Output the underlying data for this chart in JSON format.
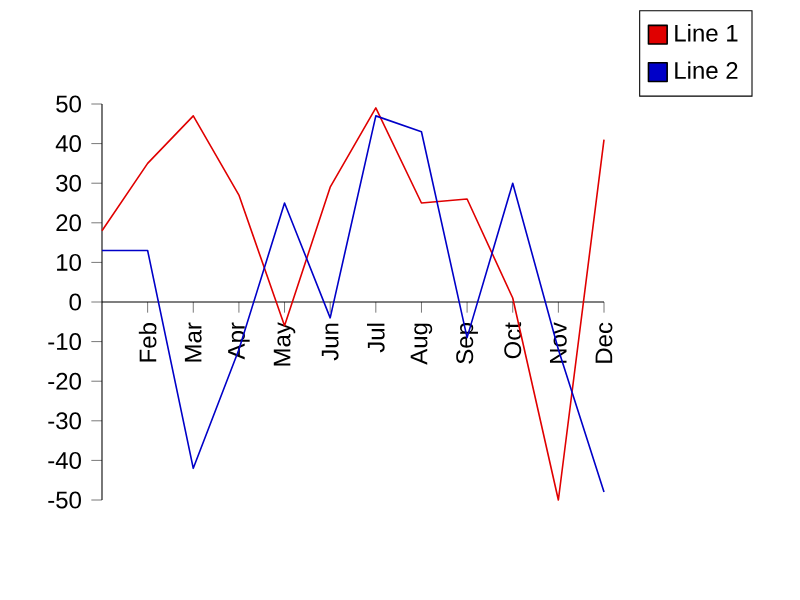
{
  "chart_data": {
    "type": "line",
    "categories": [
      null,
      "Feb",
      "Mar",
      "Apr",
      "May",
      "Jun",
      "Jul",
      "Aug",
      "Sep",
      "Oct",
      "Nov",
      "Dec"
    ],
    "series": [
      {
        "name": "Line 1",
        "color": "#e00000",
        "values": [
          18,
          35,
          47,
          27,
          -6,
          29,
          49,
          25,
          26,
          1,
          -50,
          41
        ]
      },
      {
        "name": "Line 2",
        "color": "#0000c8",
        "values": [
          13,
          13,
          -42,
          -12,
          25,
          -4,
          47,
          43,
          -9,
          30,
          -12,
          -48
        ]
      }
    ],
    "ylim": [
      -50,
      50
    ],
    "yticks": [
      -50,
      -40,
      -30,
      -20,
      -10,
      0,
      10,
      20,
      30,
      40,
      50
    ],
    "grid": false,
    "legend": "top right",
    "marker": "none",
    "line_style": "solid"
  }
}
